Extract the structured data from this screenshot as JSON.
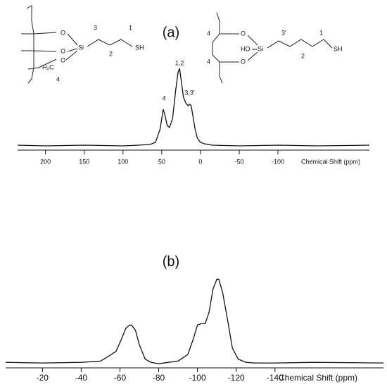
{
  "chart_data": [
    {
      "type": "line",
      "title": "(a)",
      "xlabel": "Chemical Shift (ppm)",
      "x": [
        236,
        200,
        150,
        100,
        80,
        65,
        58,
        52,
        48,
        46,
        43,
        40,
        36,
        32,
        29,
        27,
        25,
        22,
        19,
        16,
        14,
        12,
        10,
        7,
        4,
        0,
        -5,
        -15,
        -50,
        -100,
        -150,
        -218
      ],
      "values": [
        2,
        1,
        2,
        1,
        2,
        3,
        6,
        25,
        53,
        45,
        30,
        27,
        40,
        80,
        105,
        111,
        95,
        70,
        62,
        58,
        60,
        58,
        45,
        25,
        12,
        6,
        4,
        2,
        1,
        2,
        1,
        2
      ],
      "color": "#111111",
      "xlim": [
        236,
        -218
      ],
      "ylim": [
        0,
        130
      ],
      "xticks": [
        200,
        150,
        100,
        50,
        0,
        -50,
        -100
      ],
      "annotations": [
        "4",
        "1,2",
        "3,3'"
      ]
    },
    {
      "type": "line",
      "title": "(b)",
      "xlabel": "Chemical Shift (ppm)",
      "x": [
        -1,
        -20,
        -40,
        -50,
        -55,
        -58,
        -61,
        -63,
        -65,
        -66,
        -68,
        -70,
        -73,
        -76,
        -80,
        -85,
        -90,
        -95,
        -98,
        -100,
        -102,
        -104,
        -106,
        -108,
        -110,
        -111,
        -113,
        -116,
        -118,
        -121,
        -125,
        -130,
        -140,
        -160,
        -196
      ],
      "values": [
        3,
        2,
        3,
        5,
        14,
        20,
        40,
        55,
        60,
        60,
        52,
        30,
        8,
        3,
        1,
        3,
        5,
        15,
        40,
        60,
        62,
        62,
        80,
        115,
        130,
        130,
        110,
        60,
        25,
        8,
        3,
        2,
        2,
        3,
        2
      ],
      "color": "#111111",
      "xlim": [
        -1,
        -196
      ],
      "ylim": [
        0,
        140
      ],
      "xticks": [
        -20,
        -40,
        -60,
        -80,
        -100,
        -120,
        -140
      ]
    }
  ],
  "structures": {
    "left": [
      "3",
      "1",
      "O",
      "O",
      "O",
      "Si",
      "2",
      "SH",
      "H₃C",
      "4"
    ],
    "right": [
      "4",
      "O",
      "3'",
      "1",
      "HO",
      "Si",
      "2",
      "SH",
      "4",
      "O"
    ]
  }
}
